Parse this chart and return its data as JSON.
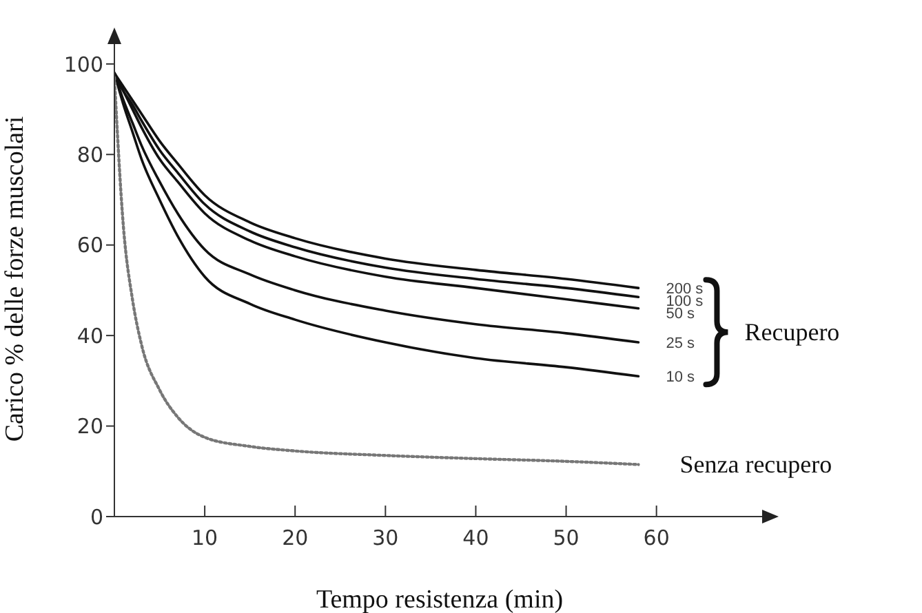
{
  "chart_data": {
    "type": "line",
    "xlabel": "Tempo resistenza (min)",
    "ylabel": "Carico % delle forze muscolari",
    "x": [
      0,
      1,
      2,
      3,
      5,
      7,
      10,
      15,
      20,
      30,
      40,
      50,
      58
    ],
    "xlim": [
      0,
      72
    ],
    "xticks": [
      10,
      20,
      30,
      40,
      50,
      60
    ],
    "ylim": [
      0,
      105
    ],
    "yticks": [
      0,
      20,
      40,
      60,
      80,
      100
    ],
    "grid": false,
    "legend": false,
    "marker": "none",
    "annotations": [
      "Recupero"
    ],
    "series": [
      {
        "name": "200 s",
        "color": "#111111",
        "line_style": "solid",
        "values": [
          98,
          95,
          92,
          89,
          83,
          78,
          71,
          65,
          61.5,
          57,
          54.5,
          52.5,
          50.5
        ]
      },
      {
        "name": "100 s",
        "color": "#111111",
        "line_style": "solid",
        "values": [
          98,
          94,
          91,
          87.5,
          81,
          76,
          69,
          63,
          59.5,
          55,
          52.5,
          50.5,
          48.5
        ]
      },
      {
        "name": "50 s",
        "color": "#111111",
        "line_style": "solid",
        "values": [
          98,
          94,
          90,
          86,
          79,
          74,
          67,
          61,
          57.5,
          53,
          50.5,
          48,
          46
        ]
      },
      {
        "name": "25 s",
        "color": "#111111",
        "line_style": "solid",
        "values": [
          98,
          92,
          87,
          82,
          74,
          67,
          59,
          53.5,
          50,
          45.5,
          42.5,
          40.5,
          38.5
        ]
      },
      {
        "name": "10 s",
        "color": "#111111",
        "line_style": "solid",
        "values": [
          98,
          91,
          85,
          79,
          70,
          62,
          53,
          47,
          43.5,
          38.5,
          35,
          33,
          31
        ]
      },
      {
        "name": "Senza recupero",
        "color": "#777777",
        "line_style": "dotted",
        "values": [
          97,
          64,
          48,
          38,
          28,
          22,
          17.5,
          15.5,
          14.5,
          13.5,
          12.8,
          12.2,
          11.5
        ]
      }
    ]
  }
}
